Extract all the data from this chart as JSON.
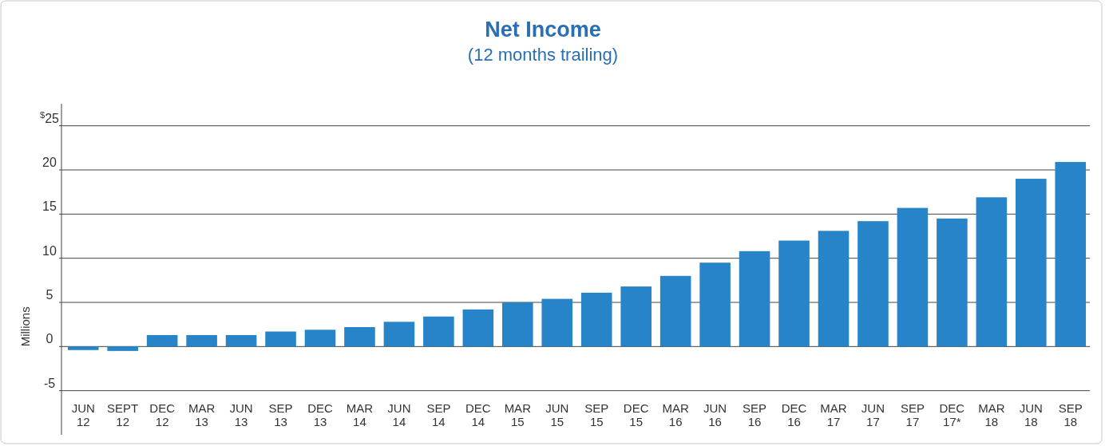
{
  "chart_data": {
    "type": "bar",
    "title": "Net Income",
    "subtitle": "(12 months trailing)",
    "ylabel": "Millions",
    "categories": [
      "JUN 12",
      "SEPT 12",
      "DEC 12",
      "MAR 13",
      "JUN 13",
      "SEP 13",
      "DEC 13",
      "MAR 14",
      "JUN 14",
      "SEP 14",
      "DEC 14",
      "MAR 15",
      "JUN 15",
      "SEP 15",
      "DEC 15",
      "MAR 16",
      "JUN 16",
      "SEP 16",
      "DEC 16",
      "MAR 17",
      "JUN 17",
      "SEP 17",
      "DEC 17*",
      "MAR 18",
      "JUN 18",
      "SEP 18"
    ],
    "values": [
      -0.4,
      -0.5,
      1.3,
      1.3,
      1.3,
      1.7,
      1.9,
      2.2,
      2.8,
      3.4,
      4.2,
      5.0,
      5.4,
      6.1,
      6.8,
      8.0,
      9.5,
      10.8,
      12.0,
      13.1,
      14.2,
      15.7,
      14.5,
      16.9,
      19.0,
      20.9
    ],
    "color": "#2784c8",
    "ylim": [
      -10,
      27.5
    ],
    "yticks": [
      {
        "value": -5,
        "label": "-5"
      },
      0,
      5,
      10,
      15,
      20,
      {
        "value": 25,
        "label": "$^{$}$25"
      }
    ],
    "grid": "y"
  }
}
